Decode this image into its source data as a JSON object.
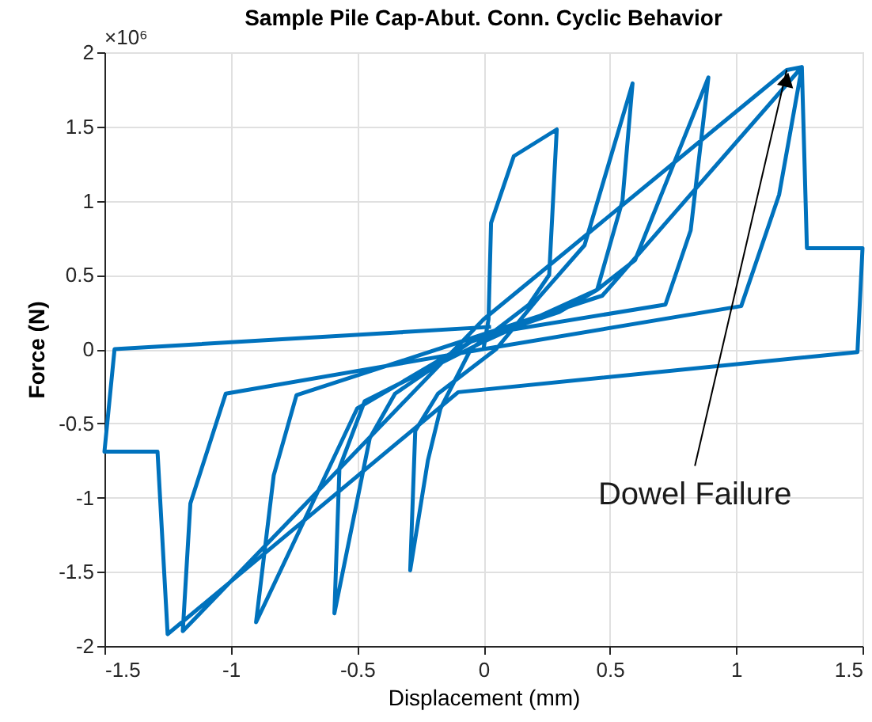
{
  "chart_data": {
    "type": "line",
    "title": "Sample Pile Cap-Abut. Conn. Cyclic Behavior",
    "xlabel": "Displacement (mm)",
    "ylabel": "Force (N)",
    "annotations": [
      "×10⁶",
      {
        "text": "Dowel Failure",
        "x": 1.2,
        "y": 1.88
      }
    ],
    "xlim": [
      -1.5,
      1.5
    ],
    "xticks": [
      -1.5,
      -1,
      -0.5,
      0,
      0.5,
      1,
      1.5
    ],
    "ylim": [
      -2,
      2
    ],
    "yticks": [
      -2,
      -1.5,
      -1,
      -0.5,
      0,
      0.5,
      1,
      1.5,
      2
    ],
    "grid": true,
    "series": [
      {
        "color": "#0072bd",
        "x": [
          0,
          0.02,
          0.03,
          0.12,
          0.29,
          0.26,
          0.18,
          -0.05,
          -0.17,
          -0.22,
          -0.29,
          -0.27,
          -0.18,
          0.05,
          0.22,
          0.4,
          0.59,
          0.55,
          0.45,
          0.3,
          -0.05,
          -0.35,
          -0.45,
          -0.59,
          -0.57,
          -0.47,
          0.0,
          0.45,
          0.6,
          0.89,
          0.82,
          0.72,
          0.0,
          -0.74,
          -0.83,
          -0.9,
          -0.5,
          0.0,
          0.47,
          1.26,
          1.17,
          1.02,
          0.0,
          -1.02,
          -1.16,
          -1.19,
          0.0,
          1.2,
          1.26,
          1.28,
          1.5,
          1.48,
          -0.1,
          -1.25,
          -1.29,
          -1.5,
          -1.46,
          0.03
        ],
        "values": [
          0,
          0.2,
          0.85,
          1.3,
          1.48,
          0.5,
          0.3,
          0.0,
          -0.4,
          -0.75,
          -1.49,
          -0.55,
          -0.3,
          0.0,
          0.35,
          0.7,
          1.79,
          1.0,
          0.4,
          0.25,
          0.05,
          -0.3,
          -0.6,
          -1.78,
          -0.8,
          -0.35,
          0.05,
          0.4,
          0.6,
          1.83,
          0.8,
          0.3,
          0.1,
          -0.31,
          -0.85,
          -1.84,
          -0.4,
          0.1,
          0.36,
          1.9,
          1.04,
          0.29,
          0.0,
          -0.3,
          -1.04,
          -1.9,
          0.2,
          1.88,
          1.9,
          0.68,
          0.68,
          -0.02,
          -0.29,
          -1.92,
          -0.69,
          -0.69,
          0.0,
          0.15
        ]
      }
    ]
  }
}
